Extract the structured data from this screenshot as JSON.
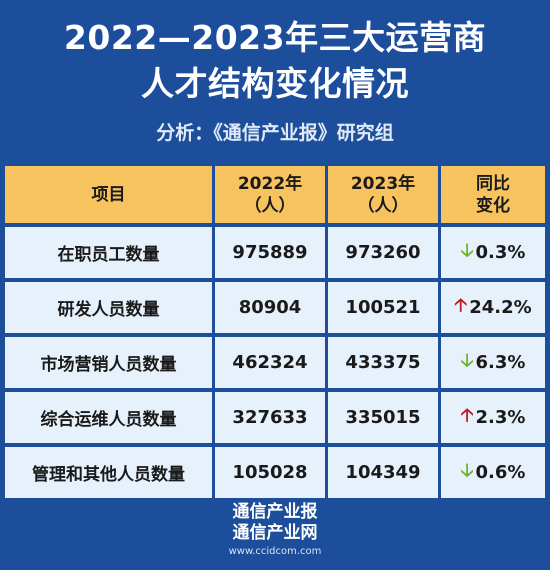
{
  "header": {
    "title_line1": "2022—2023年三大运营商",
    "title_line2": "人才结构变化情况",
    "subtitle": "分析：《通信产业报》研究组"
  },
  "table": {
    "columns": [
      {
        "line1": "项目",
        "line2": ""
      },
      {
        "line1": "2022年",
        "line2": "（人）"
      },
      {
        "line1": "2023年",
        "line2": "（人）"
      },
      {
        "line1": "同比",
        "line2": "变化"
      }
    ],
    "rows": [
      {
        "item": "在职员工数量",
        "y2022": "975889",
        "y2023": "973260",
        "direction": "down",
        "arrow": "🡣",
        "change": "0.3%"
      },
      {
        "item": "研发人员数量",
        "y2022": "80904",
        "y2023": "100521",
        "direction": "up",
        "arrow": "🡡",
        "change": "24.2%"
      },
      {
        "item": "市场营销人员数量",
        "y2022": "462324",
        "y2023": "433375",
        "direction": "down",
        "arrow": "🡣",
        "change": "6.3%"
      },
      {
        "item": "综合运维人员数量",
        "y2022": "327633",
        "y2023": "335015",
        "direction": "up",
        "arrow": "🡡",
        "change": "2.3%"
      },
      {
        "item": "管理和其他人员数量",
        "y2022": "105028",
        "y2023": "104349",
        "direction": "down",
        "arrow": "🡣",
        "change": "0.6%"
      }
    ]
  },
  "footer": {
    "brand1": "通信产业报",
    "brand2": "通信产业网",
    "url": "www.ccidcom.com"
  },
  "colors": {
    "background": "#1c4e9c",
    "header_cell": "#f6c35f",
    "body_cell": "#e7f1fc",
    "up": "#c0191f",
    "down": "#6fb32b"
  }
}
